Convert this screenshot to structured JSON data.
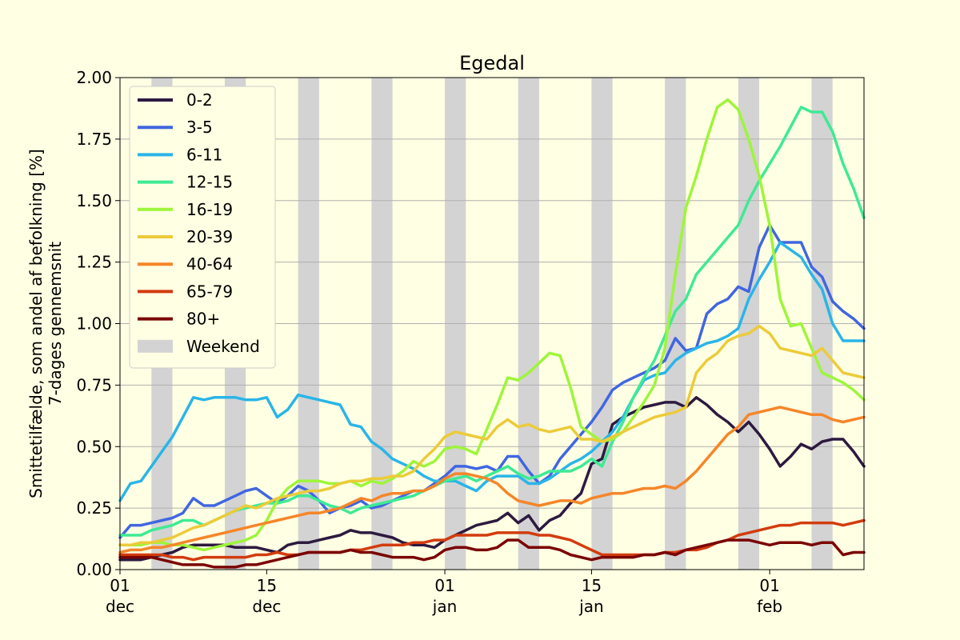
{
  "chart_data": {
    "type": "line",
    "title": "Egedal",
    "ylabel_line1": "Smittetilfælde, som andel af befolkning [%]",
    "ylabel_line2": "7-dages gennemsnit",
    "xlabel": "",
    "x_start": "2021-12-01",
    "x_end": "2022-02-10",
    "ylim": [
      0,
      2.0
    ],
    "yticks": [
      "0.00",
      "0.25",
      "0.50",
      "0.75",
      "1.00",
      "1.25",
      "1.50",
      "1.75",
      "2.00"
    ],
    "xticks": [
      {
        "date": "2021-12-01",
        "day": "01",
        "month": "dec"
      },
      {
        "date": "2021-12-15",
        "day": "15",
        "month": "dec"
      },
      {
        "date": "2022-01-01",
        "day": "01",
        "month": "jan"
      },
      {
        "date": "2022-01-15",
        "day": "15",
        "month": "jan"
      },
      {
        "date": "2022-02-01",
        "day": "01",
        "month": "feb"
      }
    ],
    "grid": "horizontal",
    "legend_position": "upper-left",
    "weekend_label": "Weekend",
    "weekend_color": "#d3d3d3",
    "weekend_start_dates": [
      "2021-12-04",
      "2021-12-11",
      "2021-12-18",
      "2021-12-25",
      "2022-01-01",
      "2022-01-08",
      "2022-01-15",
      "2022-01-22",
      "2022-01-29",
      "2022-02-05",
      "2022-02-12"
    ],
    "dates": [
      "2021-12-01",
      "2021-12-02",
      "2021-12-03",
      "2021-12-04",
      "2021-12-05",
      "2021-12-06",
      "2021-12-07",
      "2021-12-08",
      "2021-12-09",
      "2021-12-10",
      "2021-12-11",
      "2021-12-12",
      "2021-12-13",
      "2021-12-14",
      "2021-12-15",
      "2021-12-16",
      "2021-12-17",
      "2021-12-18",
      "2021-12-19",
      "2021-12-20",
      "2021-12-21",
      "2021-12-22",
      "2021-12-23",
      "2021-12-24",
      "2021-12-25",
      "2021-12-26",
      "2021-12-27",
      "2021-12-28",
      "2021-12-29",
      "2021-12-30",
      "2021-12-31",
      "2022-01-01",
      "2022-01-02",
      "2022-01-03",
      "2022-01-04",
      "2022-01-05",
      "2022-01-06",
      "2022-01-07",
      "2022-01-08",
      "2022-01-09",
      "2022-01-10",
      "2022-01-11",
      "2022-01-12",
      "2022-01-13",
      "2022-01-14",
      "2022-01-15",
      "2022-01-16",
      "2022-01-17",
      "2022-01-18",
      "2022-01-19",
      "2022-01-20",
      "2022-01-21",
      "2022-01-22",
      "2022-01-23",
      "2022-01-24",
      "2022-01-25",
      "2022-01-26",
      "2022-01-27",
      "2022-01-28",
      "2022-01-29",
      "2022-01-30",
      "2022-01-31",
      "2022-02-01",
      "2022-02-02",
      "2022-02-03",
      "2022-02-04",
      "2022-02-05",
      "2022-02-06",
      "2022-02-07",
      "2022-02-08",
      "2022-02-09",
      "2022-02-10"
    ],
    "series": [
      {
        "name": "0-2",
        "color": "#2d1a3f",
        "values": [
          0.04,
          0.04,
          0.04,
          0.05,
          0.06,
          0.07,
          0.09,
          0.1,
          0.1,
          0.1,
          0.1,
          0.09,
          0.09,
          0.09,
          0.08,
          0.07,
          0.1,
          0.11,
          0.11,
          0.12,
          0.13,
          0.14,
          0.16,
          0.15,
          0.15,
          0.14,
          0.13,
          0.11,
          0.1,
          0.1,
          0.09,
          0.12,
          0.14,
          0.16,
          0.18,
          0.19,
          0.2,
          0.23,
          0.19,
          0.22,
          0.16,
          0.2,
          0.22,
          0.27,
          0.31,
          0.43,
          0.45,
          0.59,
          0.62,
          0.64,
          0.66,
          0.67,
          0.68,
          0.68,
          0.66,
          0.7,
          0.67,
          0.63,
          0.6,
          0.56,
          0.6,
          0.55,
          0.49,
          0.42,
          0.46,
          0.51,
          0.49,
          0.52,
          0.53,
          0.53,
          0.48,
          0.42
        ]
      },
      {
        "name": "3-5",
        "color": "#4166e0",
        "values": [
          0.13,
          0.18,
          0.18,
          0.19,
          0.2,
          0.21,
          0.23,
          0.29,
          0.26,
          0.26,
          0.28,
          0.3,
          0.32,
          0.33,
          0.3,
          0.27,
          0.3,
          0.34,
          0.32,
          0.28,
          0.23,
          0.25,
          0.26,
          0.28,
          0.25,
          0.26,
          0.28,
          0.3,
          0.32,
          0.32,
          0.35,
          0.38,
          0.42,
          0.42,
          0.41,
          0.42,
          0.4,
          0.46,
          0.46,
          0.4,
          0.35,
          0.38,
          0.45,
          0.5,
          0.55,
          0.6,
          0.66,
          0.73,
          0.76,
          0.78,
          0.8,
          0.82,
          0.85,
          0.94,
          0.89,
          0.9,
          1.04,
          1.08,
          1.1,
          1.15,
          1.13,
          1.31,
          1.4,
          1.33,
          1.33,
          1.33,
          1.23,
          1.19,
          1.09,
          1.05,
          1.02,
          0.98
        ]
      },
      {
        "name": "6-11",
        "color": "#2ab5e8",
        "values": [
          0.28,
          0.35,
          0.36,
          0.42,
          0.48,
          0.54,
          0.62,
          0.7,
          0.69,
          0.7,
          0.7,
          0.7,
          0.69,
          0.69,
          0.7,
          0.62,
          0.65,
          0.71,
          0.7,
          0.69,
          0.68,
          0.67,
          0.59,
          0.58,
          0.52,
          0.49,
          0.45,
          0.43,
          0.41,
          0.38,
          0.36,
          0.36,
          0.36,
          0.34,
          0.32,
          0.36,
          0.38,
          0.38,
          0.38,
          0.35,
          0.35,
          0.37,
          0.4,
          0.43,
          0.45,
          0.48,
          0.52,
          0.56,
          0.62,
          0.7,
          0.77,
          0.79,
          0.8,
          0.85,
          0.88,
          0.9,
          0.92,
          0.93,
          0.95,
          0.98,
          1.1,
          1.18,
          1.25,
          1.33,
          1.3,
          1.27,
          1.2,
          1.14,
          1.0,
          0.93,
          0.93,
          0.93
        ]
      },
      {
        "name": "12-15",
        "color": "#3eea94",
        "values": [
          0.14,
          0.14,
          0.14,
          0.16,
          0.17,
          0.18,
          0.2,
          0.2,
          0.18,
          0.2,
          0.22,
          0.24,
          0.25,
          0.26,
          0.27,
          0.27,
          0.28,
          0.3,
          0.3,
          0.28,
          0.26,
          0.25,
          0.23,
          0.25,
          0.26,
          0.27,
          0.28,
          0.29,
          0.3,
          0.32,
          0.34,
          0.36,
          0.37,
          0.38,
          0.36,
          0.38,
          0.4,
          0.42,
          0.39,
          0.37,
          0.38,
          0.4,
          0.4,
          0.4,
          0.42,
          0.45,
          0.42,
          0.52,
          0.6,
          0.7,
          0.78,
          0.85,
          0.95,
          1.05,
          1.1,
          1.2,
          1.25,
          1.3,
          1.35,
          1.4,
          1.5,
          1.58,
          1.65,
          1.72,
          1.8,
          1.88,
          1.86,
          1.86,
          1.78,
          1.65,
          1.55,
          1.43
        ]
      },
      {
        "name": "16-19",
        "color": "#9ef53a",
        "values": [
          0.1,
          0.1,
          0.1,
          0.11,
          0.11,
          0.1,
          0.1,
          0.09,
          0.08,
          0.09,
          0.1,
          0.11,
          0.12,
          0.14,
          0.2,
          0.28,
          0.33,
          0.36,
          0.36,
          0.36,
          0.35,
          0.35,
          0.36,
          0.34,
          0.36,
          0.35,
          0.37,
          0.4,
          0.44,
          0.42,
          0.44,
          0.49,
          0.5,
          0.49,
          0.47,
          0.57,
          0.67,
          0.78,
          0.77,
          0.8,
          0.84,
          0.88,
          0.87,
          0.74,
          0.58,
          0.55,
          0.52,
          0.53,
          0.56,
          0.62,
          0.68,
          0.75,
          0.9,
          1.2,
          1.47,
          1.6,
          1.75,
          1.88,
          1.91,
          1.87,
          1.75,
          1.6,
          1.4,
          1.1,
          0.99,
          1.0,
          0.9,
          0.8,
          0.78,
          0.76,
          0.73,
          0.69
        ]
      },
      {
        "name": "20-39",
        "color": "#ebcb3a",
        "values": [
          0.1,
          0.1,
          0.11,
          0.11,
          0.12,
          0.13,
          0.15,
          0.17,
          0.18,
          0.2,
          0.22,
          0.24,
          0.26,
          0.25,
          0.27,
          0.29,
          0.3,
          0.31,
          0.32,
          0.32,
          0.33,
          0.35,
          0.36,
          0.36,
          0.37,
          0.37,
          0.38,
          0.38,
          0.4,
          0.45,
          0.49,
          0.54,
          0.56,
          0.55,
          0.54,
          0.53,
          0.58,
          0.61,
          0.58,
          0.59,
          0.57,
          0.56,
          0.57,
          0.58,
          0.53,
          0.53,
          0.52,
          0.54,
          0.56,
          0.58,
          0.6,
          0.62,
          0.63,
          0.64,
          0.66,
          0.8,
          0.85,
          0.88,
          0.93,
          0.95,
          0.96,
          0.99,
          0.96,
          0.9,
          0.89,
          0.88,
          0.87,
          0.9,
          0.85,
          0.8,
          0.79,
          0.78
        ]
      },
      {
        "name": "40-64",
        "color": "#f5862a",
        "values": [
          0.07,
          0.08,
          0.08,
          0.09,
          0.09,
          0.1,
          0.11,
          0.12,
          0.13,
          0.14,
          0.15,
          0.16,
          0.17,
          0.18,
          0.19,
          0.2,
          0.21,
          0.22,
          0.23,
          0.23,
          0.24,
          0.25,
          0.27,
          0.29,
          0.28,
          0.3,
          0.31,
          0.31,
          0.32,
          0.32,
          0.34,
          0.37,
          0.39,
          0.39,
          0.38,
          0.37,
          0.35,
          0.31,
          0.28,
          0.27,
          0.26,
          0.27,
          0.28,
          0.28,
          0.27,
          0.29,
          0.3,
          0.31,
          0.31,
          0.32,
          0.33,
          0.33,
          0.34,
          0.33,
          0.36,
          0.4,
          0.45,
          0.5,
          0.55,
          0.58,
          0.63,
          0.64,
          0.65,
          0.66,
          0.65,
          0.64,
          0.63,
          0.63,
          0.61,
          0.6,
          0.61,
          0.62
        ]
      },
      {
        "name": "65-79",
        "color": "#d23c0e",
        "values": [
          0.06,
          0.06,
          0.06,
          0.06,
          0.06,
          0.05,
          0.05,
          0.04,
          0.05,
          0.05,
          0.05,
          0.05,
          0.05,
          0.06,
          0.06,
          0.07,
          0.06,
          0.06,
          0.07,
          0.07,
          0.07,
          0.07,
          0.08,
          0.08,
          0.09,
          0.1,
          0.1,
          0.1,
          0.11,
          0.11,
          0.12,
          0.12,
          0.14,
          0.14,
          0.14,
          0.14,
          0.15,
          0.15,
          0.15,
          0.15,
          0.14,
          0.14,
          0.13,
          0.12,
          0.1,
          0.08,
          0.06,
          0.06,
          0.06,
          0.06,
          0.06,
          0.06,
          0.07,
          0.07,
          0.08,
          0.08,
          0.09,
          0.11,
          0.12,
          0.14,
          0.15,
          0.16,
          0.17,
          0.18,
          0.18,
          0.19,
          0.19,
          0.19,
          0.19,
          0.18,
          0.19,
          0.2
        ]
      },
      {
        "name": "80+",
        "color": "#7a0403",
        "values": [
          0.05,
          0.05,
          0.05,
          0.05,
          0.04,
          0.03,
          0.02,
          0.02,
          0.02,
          0.01,
          0.01,
          0.01,
          0.02,
          0.02,
          0.03,
          0.04,
          0.05,
          0.06,
          0.07,
          0.07,
          0.07,
          0.07,
          0.08,
          0.07,
          0.07,
          0.06,
          0.05,
          0.05,
          0.05,
          0.04,
          0.05,
          0.08,
          0.09,
          0.09,
          0.08,
          0.08,
          0.09,
          0.12,
          0.12,
          0.09,
          0.09,
          0.09,
          0.08,
          0.06,
          0.05,
          0.04,
          0.05,
          0.05,
          0.05,
          0.05,
          0.06,
          0.06,
          0.07,
          0.06,
          0.08,
          0.09,
          0.1,
          0.11,
          0.12,
          0.12,
          0.12,
          0.11,
          0.1,
          0.11,
          0.11,
          0.11,
          0.1,
          0.11,
          0.11,
          0.06,
          0.07,
          0.07
        ]
      }
    ]
  }
}
